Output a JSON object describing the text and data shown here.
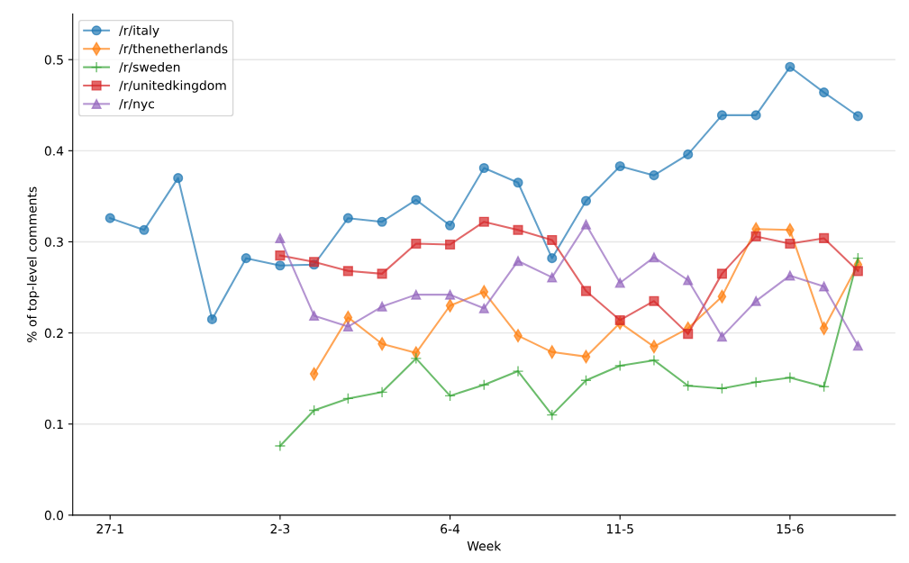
{
  "chart_data": {
    "type": "line",
    "xlabel": "Week",
    "ylabel": "% of top-level comments",
    "categories": [
      "27-1",
      null,
      null,
      null,
      null,
      "2-3",
      null,
      null,
      null,
      null,
      "6-4",
      null,
      null,
      null,
      null,
      "11-5",
      null,
      null,
      null,
      null,
      "15-6",
      null,
      null
    ],
    "series": [
      {
        "name": "/r/italy",
        "color": "#1f77b4",
        "marker": "circle",
        "values": [
          0.326,
          0.313,
          0.37,
          0.215,
          0.282,
          0.274,
          0.275,
          0.326,
          0.322,
          0.346,
          0.318,
          0.381,
          0.365,
          0.282,
          0.345,
          0.383,
          0.373,
          0.396,
          0.439,
          0.439,
          0.492,
          0.464,
          0.438
        ]
      },
      {
        "name": "/r/thenetherlands",
        "color": "#ff7f0e",
        "marker": "diamond",
        "values": [
          null,
          null,
          null,
          null,
          null,
          null,
          0.155,
          0.217,
          0.188,
          0.178,
          0.23,
          0.245,
          0.197,
          0.179,
          0.174,
          0.211,
          0.185,
          0.205,
          0.24,
          0.314,
          0.313,
          0.205,
          0.275
        ]
      },
      {
        "name": "/r/sweden",
        "color": "#2ca02c",
        "marker": "cross",
        "values": [
          null,
          null,
          null,
          null,
          null,
          0.076,
          0.115,
          0.128,
          0.135,
          0.172,
          0.131,
          0.143,
          0.158,
          0.11,
          0.148,
          0.164,
          0.17,
          0.142,
          0.139,
          0.146,
          0.151,
          0.141,
          0.282
        ]
      },
      {
        "name": "/r/unitedkingdom",
        "color": "#d62728",
        "marker": "square",
        "values": [
          null,
          null,
          null,
          null,
          null,
          0.285,
          0.278,
          0.268,
          0.265,
          0.298,
          0.297,
          0.322,
          0.313,
          0.302,
          0.246,
          0.214,
          0.235,
          0.199,
          0.265,
          0.306,
          0.298,
          0.304,
          0.268
        ]
      },
      {
        "name": "/r/nyc",
        "color": "#9467bd",
        "marker": "triangle",
        "values": [
          null,
          null,
          null,
          null,
          null,
          0.304,
          0.219,
          0.207,
          0.229,
          0.242,
          0.242,
          0.227,
          0.279,
          0.261,
          0.319,
          0.255,
          0.283,
          0.258,
          0.196,
          0.235,
          0.263,
          0.251,
          0.186
        ]
      }
    ],
    "ylim": [
      0,
      0.55
    ],
    "yticks": [
      {
        "value": 0,
        "label": "0.0"
      },
      0.1,
      0.2,
      0.3,
      0.4,
      0.5
    ],
    "grid": "y",
    "legend": "top left",
    "line_style": "solid"
  }
}
